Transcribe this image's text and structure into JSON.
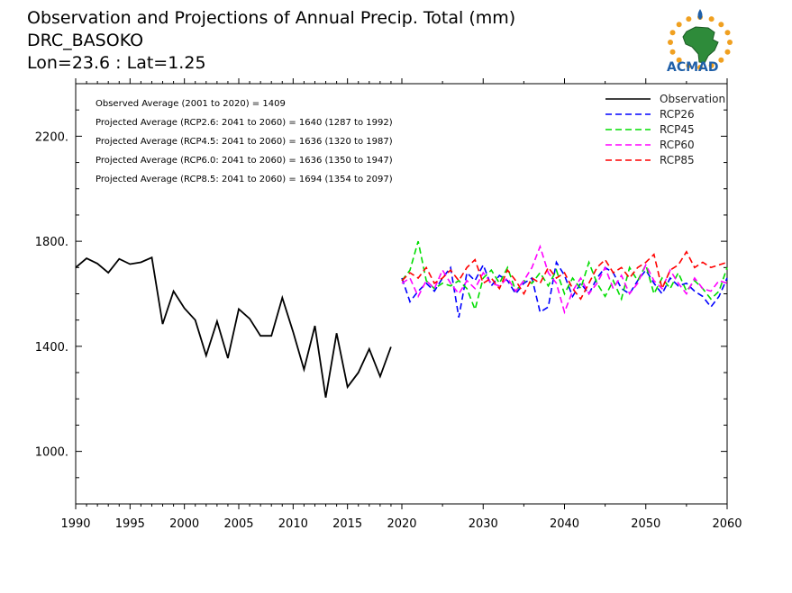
{
  "titles": {
    "line1": "Observation and Projections of Annual Precip. Total (mm)",
    "line2": "DRC_BASOKO",
    "line3": "Lon=23.6 : Lat=1.25"
  },
  "logo": {
    "text": "ACMAD",
    "icon": "africa-map-sun-logo",
    "colors": {
      "sun": "#f0a020",
      "land": "#2e8b3a",
      "text": "#1f5fa8"
    }
  },
  "stats": [
    "Observed Average (2001 to 2020) = 1409",
    "Projected Average (RCP2.6: 2041 to 2060) = 1640 (1287 to 1992)",
    "Projected Average (RCP4.5: 2041 to 2060) = 1636 (1320 to 1987)",
    "Projected Average (RCP6.0: 2041 to 2060) = 1636 (1350 to 1947)",
    "Projected Average (RCP8.5: 2041 to 2060) = 1694 (1354 to 2097)"
  ],
  "chart_data": {
    "type": "line",
    "title": "Observation and Projections of Annual Precip. Total (mm)",
    "xlabel": "",
    "ylabel": "",
    "grid": false,
    "legend_position": "top-right",
    "segments": [
      {
        "x_start": 1990,
        "x_end": 2020,
        "ticks": [
          1990,
          1995,
          2000,
          2005,
          2010,
          2015,
          2020
        ],
        "minor_step": 1
      },
      {
        "x_start": 2020,
        "x_end": 2060,
        "ticks": [
          2020,
          2030,
          2040,
          2050,
          2060
        ],
        "minor_step": 5
      }
    ],
    "yticks": [
      1000,
      1400,
      1800,
      2200
    ],
    "ytick_labels": [
      "1000.",
      "1400.",
      "1800.",
      "2200."
    ],
    "ylim": [
      800,
      2400
    ],
    "series": [
      {
        "name": "Observation",
        "color": "#000000",
        "dashed": false,
        "x": [
          1990,
          1991,
          1992,
          1993,
          1994,
          1995,
          1996,
          1997,
          1998,
          1999,
          2000,
          2001,
          2002,
          2003,
          2004,
          2005,
          2006,
          2007,
          2008,
          2009,
          2010,
          2011,
          2012,
          2013,
          2014,
          2015,
          2016,
          2017,
          2018,
          2019,
          2020
        ],
        "values": [
          1700,
          1735,
          1715,
          1680,
          1733,
          1713,
          1720,
          1738,
          1485,
          1610,
          1545,
          1500,
          1365,
          1495,
          1355,
          1542,
          1505,
          1440,
          1440,
          1585,
          1455,
          1312,
          1478,
          1205,
          1450,
          1245,
          1300,
          1390,
          1285,
          1398,
          null
        ]
      },
      {
        "name": "RCP26",
        "color": "#0000ff",
        "dashed": true,
        "x": [
          2020,
          2021,
          2022,
          2023,
          2024,
          2025,
          2026,
          2027,
          2028,
          2029,
          2030,
          2031,
          2032,
          2033,
          2034,
          2035,
          2036,
          2037,
          2038,
          2039,
          2040,
          2041,
          2042,
          2043,
          2044,
          2045,
          2046,
          2047,
          2048,
          2049,
          2050,
          2051,
          2052,
          2053,
          2054,
          2055,
          2056,
          2057,
          2058,
          2059,
          2060
        ],
        "values": [
          1660,
          1570,
          1610,
          1640,
          1610,
          1660,
          1700,
          1510,
          1680,
          1650,
          1710,
          1630,
          1670,
          1650,
          1600,
          1640,
          1660,
          1530,
          1550,
          1720,
          1670,
          1590,
          1640,
          1600,
          1660,
          1700,
          1680,
          1620,
          1600,
          1650,
          1690,
          1640,
          1600,
          1660,
          1630,
          1640,
          1610,
          1590,
          1550,
          1590,
          1660
        ]
      },
      {
        "name": "RCP45",
        "color": "#00dd00",
        "dashed": true,
        "x": [
          2020,
          2021,
          2022,
          2023,
          2024,
          2025,
          2026,
          2027,
          2028,
          2029,
          2030,
          2031,
          2032,
          2033,
          2034,
          2035,
          2036,
          2037,
          2038,
          2039,
          2040,
          2041,
          2042,
          2043,
          2044,
          2045,
          2046,
          2047,
          2048,
          2049,
          2050,
          2051,
          2052,
          2053,
          2054,
          2055,
          2056,
          2057,
          2058,
          2059,
          2060
        ],
        "values": [
          1650,
          1690,
          1800,
          1650,
          1620,
          1640,
          1630,
          1650,
          1620,
          1540,
          1660,
          1690,
          1640,
          1700,
          1610,
          1650,
          1640,
          1680,
          1630,
          1690,
          1600,
          1660,
          1620,
          1720,
          1640,
          1590,
          1650,
          1580,
          1700,
          1650,
          1710,
          1600,
          1660,
          1620,
          1680,
          1610,
          1650,
          1620,
          1580,
          1610,
          1700
        ]
      },
      {
        "name": "RCP60",
        "color": "#ff00ff",
        "dashed": true,
        "x": [
          2020,
          2021,
          2022,
          2023,
          2024,
          2025,
          2026,
          2027,
          2028,
          2029,
          2030,
          2031,
          2032,
          2033,
          2034,
          2035,
          2036,
          2037,
          2038,
          2039,
          2040,
          2041,
          2042,
          2043,
          2044,
          2045,
          2046,
          2047,
          2048,
          2049,
          2050,
          2051,
          2052,
          2053,
          2054,
          2055,
          2056,
          2057,
          2058,
          2059,
          2060
        ],
        "values": [
          1640,
          1660,
          1590,
          1650,
          1620,
          1690,
          1640,
          1600,
          1650,
          1620,
          1680,
          1640,
          1630,
          1660,
          1610,
          1650,
          1700,
          1780,
          1680,
          1640,
          1530,
          1610,
          1660,
          1600,
          1640,
          1700,
          1620,
          1670,
          1600,
          1640,
          1710,
          1650,
          1620,
          1690,
          1640,
          1600,
          1660,
          1620,
          1610,
          1650,
          1640
        ]
      },
      {
        "name": "RCP85",
        "color": "#ff0000",
        "dashed": true,
        "x": [
          2020,
          2021,
          2022,
          2023,
          2024,
          2025,
          2026,
          2027,
          2028,
          2029,
          2030,
          2031,
          2032,
          2033,
          2034,
          2035,
          2036,
          2037,
          2038,
          2039,
          2040,
          2041,
          2042,
          2043,
          2044,
          2045,
          2046,
          2047,
          2048,
          2049,
          2050,
          2051,
          2052,
          2053,
          2054,
          2055,
          2056,
          2057,
          2058,
          2059,
          2060
        ],
        "values": [
          1650,
          1680,
          1660,
          1700,
          1640,
          1660,
          1690,
          1650,
          1700,
          1730,
          1640,
          1660,
          1620,
          1690,
          1650,
          1600,
          1660,
          1640,
          1700,
          1660,
          1680,
          1620,
          1580,
          1640,
          1700,
          1730,
          1680,
          1700,
          1660,
          1700,
          1720,
          1750,
          1620,
          1690,
          1710,
          1760,
          1700,
          1720,
          1700,
          1710,
          1720
        ]
      }
    ]
  }
}
